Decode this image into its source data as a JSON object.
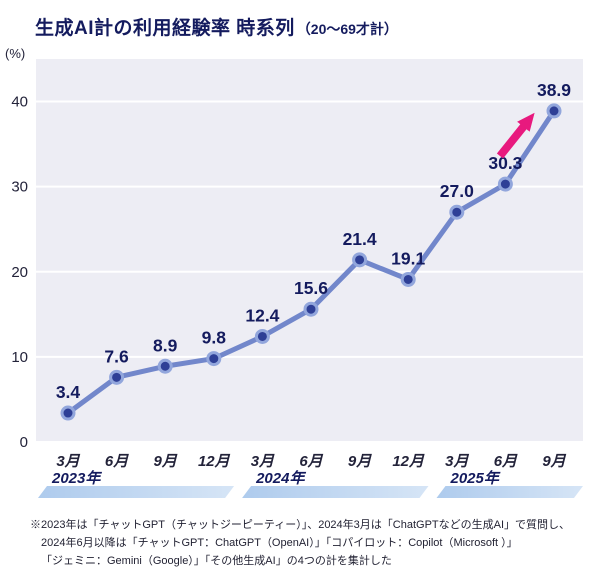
{
  "title": {
    "main": "生成AI計の利用経験率 時系列",
    "sub": "（20～69才計）"
  },
  "chart_data": {
    "type": "line",
    "title": "生成AI計の利用経験率 時系列（20～69才計）",
    "unit_label": "(%)",
    "x": [
      "3月",
      "6月",
      "9月",
      "12月",
      "3月",
      "6月",
      "9月",
      "12月",
      "3月",
      "6月",
      "9月"
    ],
    "values": [
      3.4,
      7.6,
      8.9,
      9.8,
      12.4,
      15.6,
      21.4,
      19.1,
      27.0,
      30.3,
      38.9
    ],
    "labels": [
      "3.4",
      "7.6",
      "8.9",
      "9.8",
      "12.4",
      "15.6",
      "21.4",
      "19.1",
      "27.0",
      "30.3",
      "38.9"
    ],
    "yticks": [
      0,
      10,
      20,
      30,
      40
    ],
    "ylim": [
      0,
      45
    ],
    "grid": "horizontal-only",
    "legend": "none",
    "year_bands": [
      {
        "label": "2023年",
        "start": 0,
        "end": 3
      },
      {
        "label": "2024年",
        "start": 4,
        "end": 7
      },
      {
        "label": "2025年",
        "start": 8,
        "end": 10
      }
    ],
    "colors": {
      "line": "#7287cb",
      "marker_fill": "#2e3f96",
      "marker_ring": "#92a6dc",
      "label": "#141b5e",
      "plot_bg": "#ededf4",
      "grid": "#ffffff",
      "axis_text": "#23233a",
      "arrow": "#e8197e",
      "band_left": "#aecbed",
      "band_right": "#d6e5f6"
    }
  },
  "footnote": {
    "line1": "※2023年は「チャットGPT（チャットジーピーティー）」、2024年3月は「ChatGPTなどの生成AI」で質問し、",
    "line2": "2024年6月以降は「チャットGPT：ChatGPT（OpenAI）」「コパイロット：Copilot（Microsoft ）」",
    "line3": "「ジェミニ：Gemini（Google）」「その他生成AI」の4つの計を集計した"
  }
}
